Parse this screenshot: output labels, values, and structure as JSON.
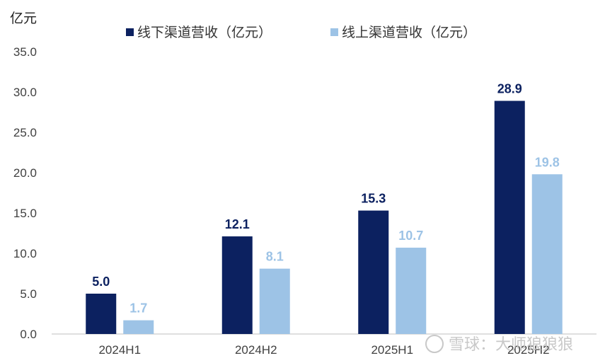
{
  "chart_data": {
    "type": "bar",
    "unit_label": "亿元",
    "categories": [
      "2024H1",
      "2024H2",
      "2025H1",
      "2025H2"
    ],
    "series": [
      {
        "name": "线下渠道营收（亿元）",
        "values": [
          5.0,
          12.1,
          15.3,
          28.9
        ],
        "color": "#0c2160"
      },
      {
        "name": "线上渠道营收（亿元）",
        "values": [
          1.7,
          8.1,
          10.7,
          19.8
        ],
        "color": "#9dc3e6"
      }
    ],
    "y_ticks": [
      "0.0",
      "5.0",
      "10.0",
      "15.0",
      "20.0",
      "25.0",
      "30.0",
      "35.0"
    ],
    "ylim": [
      0,
      35
    ],
    "grid": false,
    "legend_position": "top",
    "data_labels": true
  },
  "watermark": "雪球：大师狼狼狼"
}
